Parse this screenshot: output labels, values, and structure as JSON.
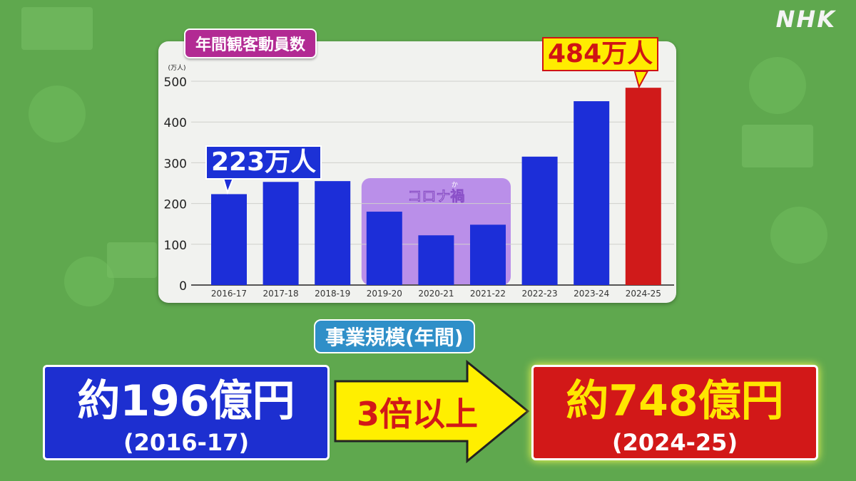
{
  "logo": "NHK",
  "chart_data": {
    "type": "bar",
    "title": "年間観客動員数",
    "ylabel": "(万人)",
    "ylim": [
      0,
      500
    ],
    "yticks": [
      0,
      100,
      200,
      300,
      400,
      500
    ],
    "categories": [
      "2016-17",
      "2017-18",
      "2018-19",
      "2019-20",
      "2020-21",
      "2021-22",
      "2022-23",
      "2023-24",
      "2024-25"
    ],
    "values": [
      223,
      253,
      255,
      180,
      122,
      148,
      315,
      451,
      484
    ],
    "colors": {
      "default": "#1c2ed8",
      "highlight": "#d01a1a",
      "covid_band": "#b07ee8"
    },
    "highlight_index": 8,
    "grid": true,
    "annotations": {
      "first": "223万人",
      "last": "484万人",
      "covid": "コロナ禍",
      "covid_ruby": "か"
    }
  },
  "section_label": "事業規模(年間)",
  "before": {
    "amount": "約196億円",
    "period": "(2016-17)"
  },
  "comparison": "3倍以上",
  "after": {
    "amount": "約748億円",
    "period": "(2024-25)"
  }
}
